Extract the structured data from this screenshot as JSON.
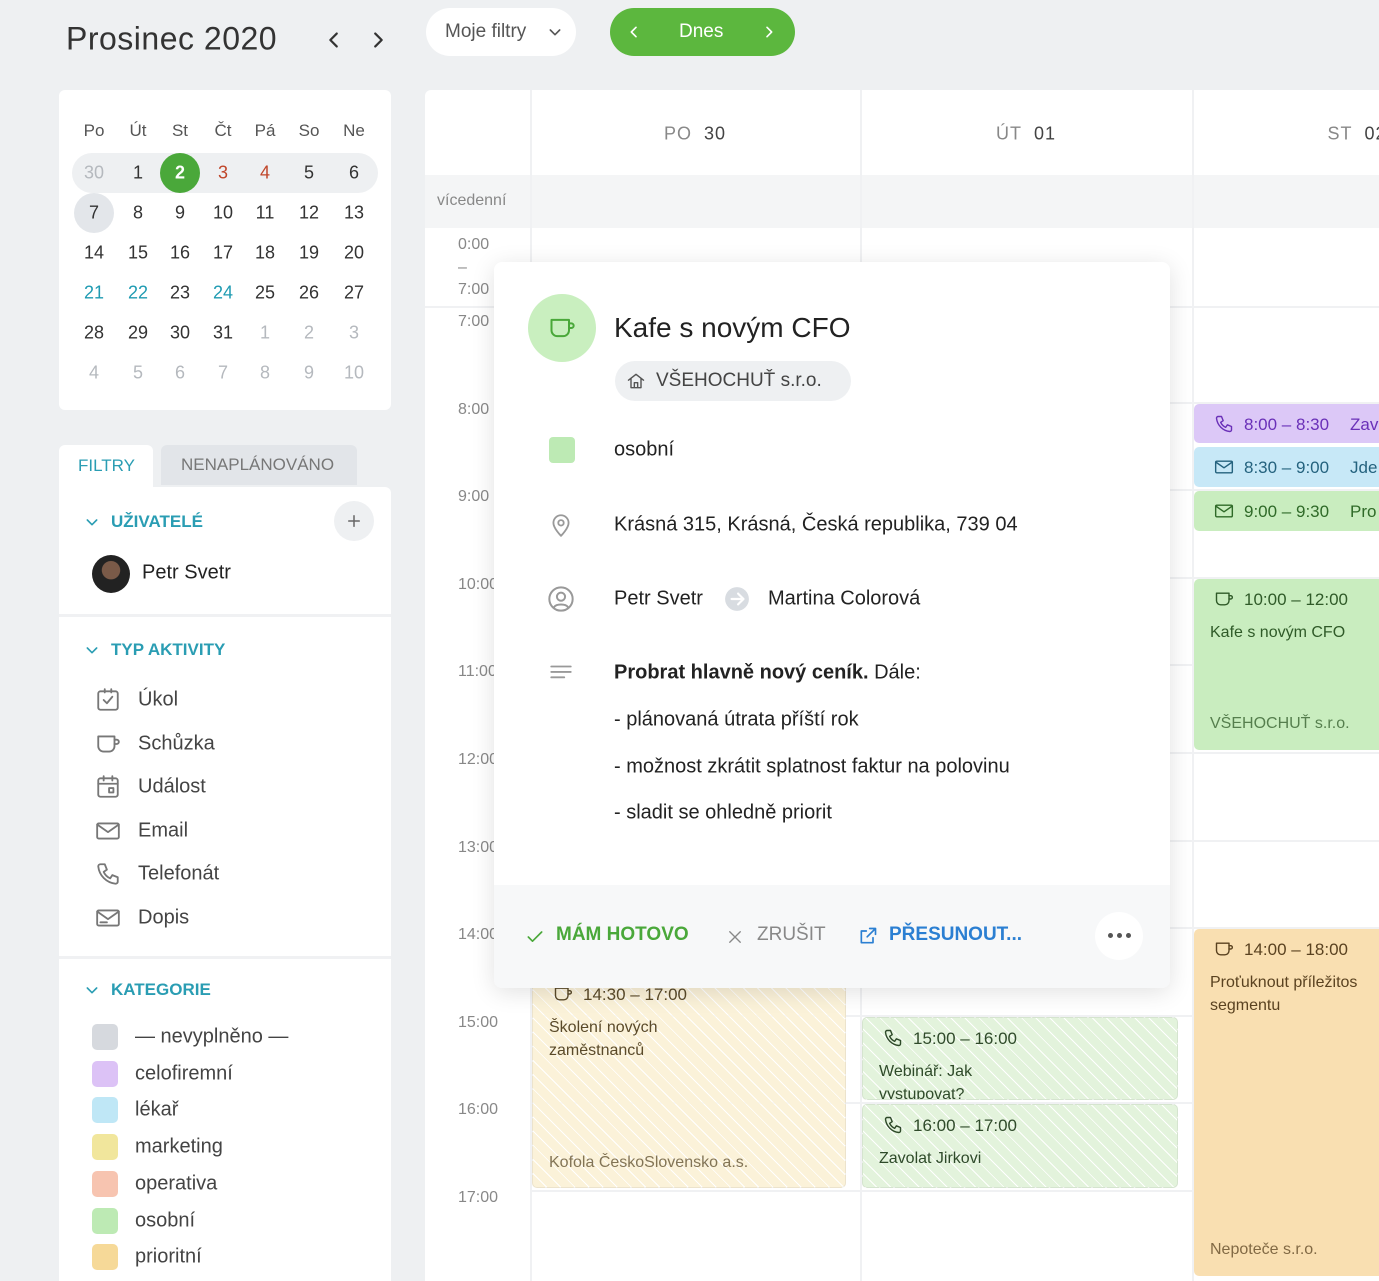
{
  "header": {
    "title": "Prosinec 2020",
    "filter": "Moje filtry",
    "today": "Dnes"
  },
  "mini_calendar": {
    "weekdays": [
      "Po",
      "Út",
      "St",
      "Čt",
      "Pá",
      "So",
      "Ne"
    ],
    "weeks": [
      [
        30,
        1,
        2,
        3,
        4,
        5,
        6
      ],
      [
        7,
        8,
        9,
        10,
        11,
        12,
        13
      ],
      [
        14,
        15,
        16,
        17,
        18,
        19,
        20
      ],
      [
        21,
        22,
        23,
        24,
        25,
        26,
        27
      ],
      [
        28,
        29,
        30,
        31,
        1,
        2,
        3
      ],
      [
        4,
        5,
        6,
        7,
        8,
        9,
        10
      ]
    ]
  },
  "sidebar": {
    "tabs": [
      "FILTRY",
      "NENAPLÁNOVÁNO"
    ],
    "users_heading": "UŽIVATELÉ",
    "users": [
      "Petr Svetr"
    ],
    "activity_heading": "TYP AKTIVITY",
    "activity_types": [
      "Úkol",
      "Schůzka",
      "Událost",
      "Email",
      "Telefonát",
      "Dopis"
    ],
    "category_heading": "KATEGORIE",
    "categories": [
      {
        "name": "— nevyplněno —",
        "color": "#d6d9de"
      },
      {
        "name": "celofiremní",
        "color": "#dcc2f6"
      },
      {
        "name": "lékař",
        "color": "#bfe7f6"
      },
      {
        "name": "marketing",
        "color": "#f1e69c"
      },
      {
        "name": "operativa",
        "color": "#f7c4b0"
      },
      {
        "name": "osobní",
        "color": "#bdeab4"
      },
      {
        "name": "prioritní",
        "color": "#f6d998"
      }
    ]
  },
  "calendar": {
    "multiday_label": "vícedenní",
    "collapsed_hours": [
      "0:00",
      "–",
      "7:00"
    ],
    "hours": [
      "7:00",
      "8:00",
      "9:00",
      "10:00",
      "11:00",
      "12:00",
      "13:00",
      "14:00",
      "15:00",
      "16:00",
      "17:00"
    ],
    "days": [
      {
        "weekday": "PO",
        "day": "30",
        "events": [
          {
            "time": "14:30 – 17:00",
            "title": "Školení nových zaměstnanců",
            "company": "Kofola ČeskoSlovensko a.s.",
            "icon": "meeting",
            "color": "#fbf2d9",
            "text_color": "#5a4a2a",
            "hatched": true
          }
        ]
      },
      {
        "weekday": "ÚT",
        "day": "01",
        "events": [
          {
            "time": "15:00 – 16:00",
            "title": "Webinář: Jak vystupovat?",
            "icon": "phone",
            "color": "#e3f3dc",
            "text_color": "#2f4a2a",
            "hatched": true
          },
          {
            "time": "16:00 – 17:00",
            "title": "Zavolat Jirkovi",
            "icon": "phone",
            "color": "#e3f3dc",
            "text_color": "#2f4a2a",
            "hatched": true
          }
        ]
      },
      {
        "weekday": "ST",
        "day": "02",
        "events": [
          {
            "time": "8:00 – 8:30",
            "title": "Zav",
            "icon": "phone",
            "color": "#dcc8f7",
            "text_color": "#6a30b8"
          },
          {
            "time": "8:30 – 9:00",
            "title": "Jde",
            "icon": "email",
            "color": "#c7e8f7",
            "text_color": "#24627e"
          },
          {
            "time": "9:00 – 9:30",
            "title": "Pro",
            "icon": "email",
            "color": "#c9edbf",
            "text_color": "#2f6a28"
          },
          {
            "time": "10:00 – 12:00",
            "title": "Kafe s novým CFO",
            "company": "VŠEHOCHUŤ s.r.o.",
            "icon": "meeting",
            "color": "#c9edbf",
            "text_color": "#2f5a28"
          },
          {
            "time": "14:00 – 18:00",
            "title": "Proťuknout příležitos segmentu",
            "company": "Nepoteče s.r.o.",
            "icon": "meeting",
            "color": "#f9dfb1",
            "text_color": "#5a4220"
          }
        ]
      }
    ]
  },
  "popup": {
    "title": "Kafe s novým CFO",
    "company": "VŠEHOCHUŤ s.r.o.",
    "category": "osobní",
    "category_color": "#bdeab4",
    "address": "Krásná 315, Krásná, Česká republika, 739 04",
    "from": "Petr Svetr",
    "to": "Martina Colorová",
    "note_bold": "Probrat hlavně nový ceník.",
    "note_rest": " Dále:",
    "bullets": [
      "- plánovaná útrata příští rok",
      "- možnost zkrátit splatnost faktur na polovinu",
      "- sladit se ohledně priorit"
    ],
    "actions": {
      "done": "MÁM HOTOVO",
      "cancel": "ZRUŠIT",
      "move": "PŘESUNOUT..."
    }
  }
}
